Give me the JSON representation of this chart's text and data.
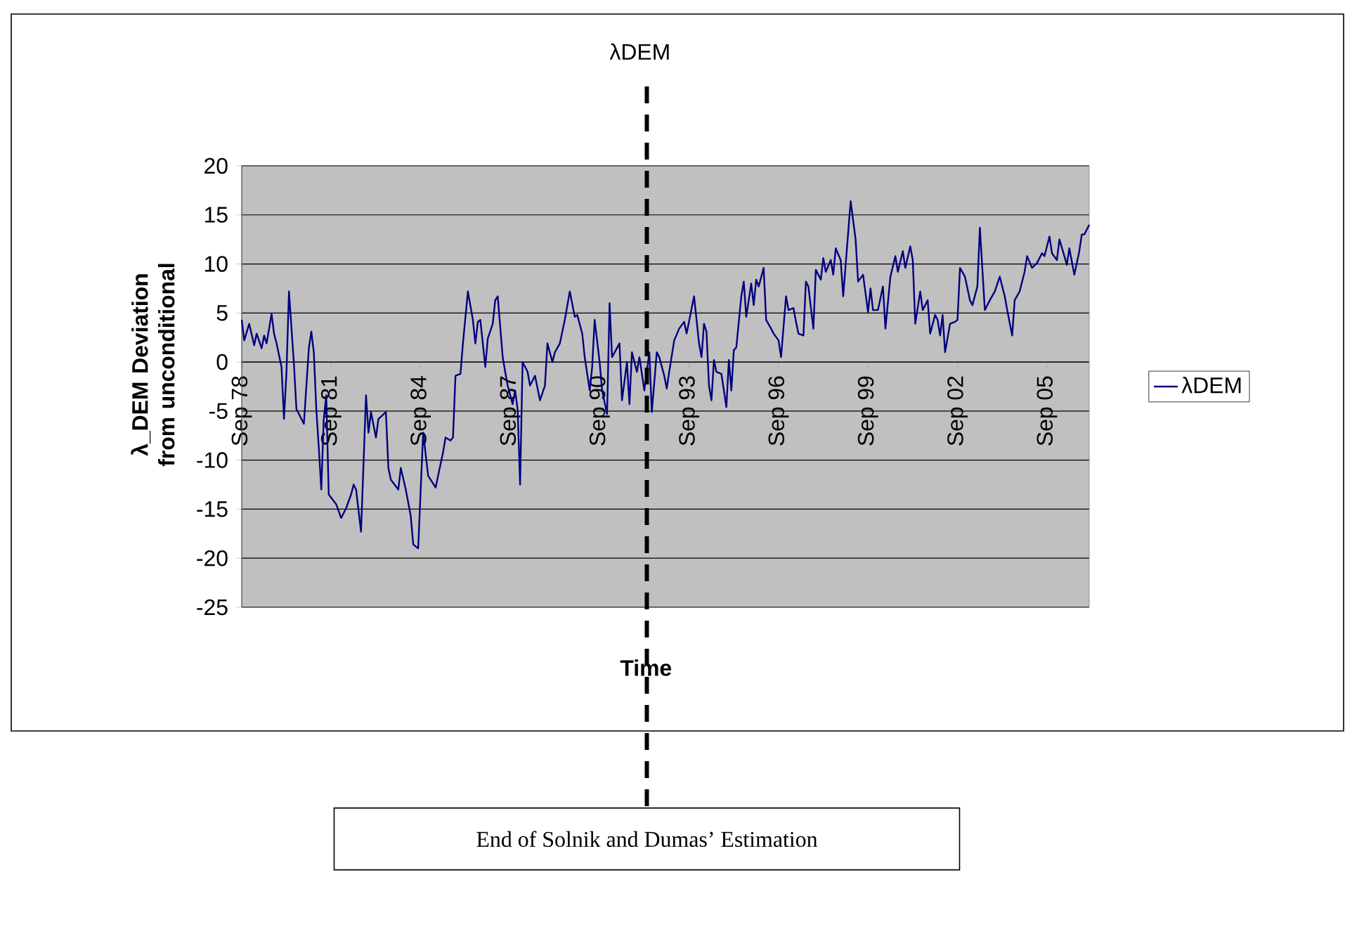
{
  "chart_data": {
    "type": "line",
    "title": "λDEM",
    "xlabel": "Time",
    "ylabel": "λ_DEM Deviation from unconditional",
    "xlim": [
      "1978-09",
      "2007-02"
    ],
    "xticks": [
      {
        "value": "1978-09",
        "label": "Sep 78"
      },
      {
        "value": "1981-09",
        "label": "Sep 81"
      },
      {
        "value": "1984-09",
        "label": "Sep 84"
      },
      {
        "value": "1987-09",
        "label": "Sep 87"
      },
      {
        "value": "1990-09",
        "label": "Sep 90"
      },
      {
        "value": "1993-09",
        "label": "Sep 93"
      },
      {
        "value": "1996-09",
        "label": "Sep 96"
      },
      {
        "value": "1999-09",
        "label": "Sep 99"
      },
      {
        "value": "2002-09",
        "label": "Sep 02"
      },
      {
        "value": "2005-09",
        "label": "Sep 05"
      }
    ],
    "ylim": [
      -25,
      20
    ],
    "yticks": [
      -25,
      -20,
      -15,
      -10,
      -5,
      0,
      5,
      10,
      15,
      20
    ],
    "grid": "y",
    "legend": "right",
    "marker": "none",
    "line_style": "solid",
    "x": [
      "1978-09",
      "1978-10",
      "1978-12",
      "1979-02",
      "1979-03",
      "1979-05",
      "1979-06",
      "1979-07",
      "1979-09",
      "1979-10",
      "1979-11",
      "1980-01",
      "1980-02",
      "1980-03",
      "1980-04",
      "1980-06",
      "1980-07",
      "1980-10",
      "1980-12",
      "1981-01",
      "1981-02",
      "1981-03",
      "1981-04",
      "1981-05",
      "1981-06",
      "1981-07",
      "1981-08",
      "1981-11",
      "1982-01",
      "1982-03",
      "1982-05",
      "1982-06",
      "1982-07",
      "1982-09",
      "1982-11",
      "1982-12",
      "1983-01",
      "1983-03",
      "1983-04",
      "1983-07",
      "1983-08",
      "1983-09",
      "1983-12",
      "1984-01",
      "1984-03",
      "1984-05",
      "1984-06",
      "1984-08",
      "1984-09",
      "1984-10",
      "1984-12",
      "1985-03",
      "1985-04",
      "1985-06",
      "1985-07",
      "1985-09",
      "1985-10",
      "1985-11",
      "1986-01",
      "1986-02",
      "1986-04",
      "1986-06",
      "1986-07",
      "1986-08",
      "1986-09",
      "1986-11",
      "1986-12",
      "1987-02",
      "1987-03",
      "1987-04",
      "1987-06",
      "1987-07",
      "1987-08",
      "1987-10",
      "1987-11",
      "1987-12",
      "1988-01",
      "1988-02",
      "1988-04",
      "1988-05",
      "1988-07",
      "1988-09",
      "1988-11",
      "1988-12",
      "1989-02",
      "1989-03",
      "1989-05",
      "1989-07",
      "1989-09",
      "1989-11",
      "1989-12",
      "1990-02",
      "1990-03",
      "1990-05",
      "1990-06",
      "1990-07",
      "1990-09",
      "1990-10",
      "1990-12",
      "1991-01",
      "1991-02",
      "1991-05",
      "1991-06",
      "1991-08",
      "1991-09",
      "1991-10",
      "1991-12",
      "1992-01",
      "1992-03",
      "1992-05",
      "1992-06",
      "1992-08",
      "1992-09",
      "1992-11",
      "1992-12",
      "1993-01",
      "1993-03",
      "1993-05",
      "1993-07",
      "1993-08",
      "1993-11",
      "1994-01",
      "1994-02",
      "1994-03",
      "1994-04",
      "1994-05",
      "1994-06",
      "1994-07",
      "1994-08",
      "1994-10",
      "1994-12",
      "1995-01",
      "1995-02",
      "1995-03",
      "1995-04",
      "1995-06",
      "1995-07",
      "1995-08",
      "1995-10",
      "1995-11",
      "1995-12",
      "1996-01",
      "1996-03",
      "1996-04",
      "1996-06",
      "1996-07",
      "1996-09",
      "1996-10",
      "1996-12",
      "1997-01",
      "1997-03",
      "1997-04",
      "1997-05",
      "1997-07",
      "1997-08",
      "1997-09",
      "1997-11",
      "1997-12",
      "1998-02",
      "1998-03",
      "1998-04",
      "1998-06",
      "1998-07",
      "1998-08",
      "1998-10",
      "1998-11",
      "1999-02",
      "1999-04",
      "1999-05",
      "1999-07",
      "1999-09",
      "1999-10",
      "1999-11",
      "2000-01",
      "2000-03",
      "2000-04",
      "2000-06",
      "2000-08",
      "2000-09",
      "2000-11",
      "2000-12",
      "2001-02",
      "2001-03",
      "2001-04",
      "2001-06",
      "2001-07",
      "2001-09",
      "2001-10",
      "2001-12",
      "2002-01",
      "2002-02",
      "2002-03",
      "2002-04",
      "2002-06",
      "2002-08",
      "2002-09",
      "2002-10",
      "2002-12",
      "2003-02",
      "2003-03",
      "2003-05",
      "2003-06",
      "2003-08",
      "2003-10",
      "2003-12",
      "2004-02",
      "2004-04",
      "2004-05",
      "2004-07",
      "2004-08",
      "2004-10",
      "2004-12",
      "2005-01",
      "2005-03",
      "2005-05",
      "2005-07",
      "2005-08",
      "2005-10",
      "2005-11",
      "2006-01",
      "2006-02",
      "2006-04",
      "2006-05",
      "2006-06",
      "2006-08",
      "2006-10",
      "2006-11",
      "2006-12",
      "2007-02"
    ],
    "series": [
      {
        "name": "λDEM",
        "color": "#000080",
        "values": [
          4.3,
          2.2,
          3.9,
          1.7,
          2.9,
          1.4,
          2.7,
          1.9,
          4.9,
          2.9,
          1.9,
          -0.5,
          -5.8,
          -1.0,
          7.2,
          -0.2,
          -4.8,
          -6.3,
          1.4,
          3.1,
          1.0,
          -4.8,
          -8.7,
          -13.0,
          -5.8,
          -3.4,
          -13.5,
          -14.5,
          -15.9,
          -14.9,
          -13.5,
          -12.5,
          -13.0,
          -17.3,
          -3.4,
          -7.2,
          -5.1,
          -7.7,
          -5.8,
          -5.1,
          -10.8,
          -12.0,
          -13.0,
          -10.8,
          -13.0,
          -15.7,
          -18.6,
          -19.0,
          -13.0,
          -7.2,
          -11.6,
          -12.8,
          -11.6,
          -9.2,
          -7.7,
          -8.0,
          -7.7,
          -1.4,
          -1.2,
          1.9,
          7.2,
          4.3,
          1.9,
          4.1,
          4.3,
          -0.5,
          2.4,
          3.9,
          6.3,
          6.7,
          0.5,
          -1.0,
          -2.4,
          -4.3,
          -2.9,
          -4.8,
          -12.5,
          0.0,
          -1.0,
          -2.4,
          -1.4,
          -3.9,
          -2.4,
          1.9,
          0.0,
          1.0,
          1.9,
          4.3,
          7.2,
          4.6,
          4.8,
          2.9,
          0.5,
          -2.9,
          -0.5,
          4.3,
          0.0,
          -2.9,
          -5.3,
          6.0,
          0.5,
          1.9,
          -3.9,
          0.0,
          -4.3,
          1.0,
          -1.0,
          0.5,
          -2.9,
          1.0,
          -5.1,
          1.0,
          0.5,
          -1.4,
          -2.7,
          -1.0,
          2.2,
          3.4,
          4.1,
          2.9,
          6.7,
          1.9,
          0.5,
          3.9,
          3.1,
          -2.4,
          -3.9,
          0.2,
          -1.0,
          -1.2,
          -4.6,
          0.2,
          -2.9,
          1.2,
          1.5,
          6.7,
          8.2,
          4.6,
          8.0,
          5.8,
          8.4,
          7.7,
          9.6,
          4.3,
          3.4,
          2.9,
          2.2,
          0.5,
          6.7,
          5.3,
          5.5,
          4.1,
          2.9,
          2.7,
          8.2,
          7.7,
          3.4,
          9.4,
          8.4,
          10.6,
          9.2,
          10.4,
          8.9,
          11.6,
          10.4,
          6.7,
          16.4,
          12.5,
          8.2,
          8.9,
          5.1,
          7.5,
          5.3,
          5.3,
          7.7,
          3.4,
          8.7,
          10.8,
          9.2,
          11.3,
          9.6,
          11.8,
          10.4,
          3.9,
          7.2,
          5.3,
          6.3,
          2.9,
          4.8,
          4.3,
          2.7,
          4.8,
          1.0,
          3.9,
          4.1,
          4.3,
          9.6,
          8.7,
          6.3,
          5.8,
          7.7,
          13.7,
          5.3,
          6.3,
          7.2,
          8.7,
          6.7,
          5.3,
          2.7,
          6.3,
          7.2,
          9.2,
          10.8,
          9.6,
          10.1,
          11.1,
          10.8,
          12.8,
          11.1,
          10.4,
          12.5,
          10.8,
          9.9,
          11.6,
          8.9,
          11.3,
          13.0,
          13.0,
          14.0
        ]
      }
    ],
    "ref_lines": [
      {
        "axis": "x",
        "value": "1992-04",
        "label": "End of Solnik and Dumas’ Estimation",
        "color": "#000000",
        "line_style": "dashed"
      }
    ]
  }
}
